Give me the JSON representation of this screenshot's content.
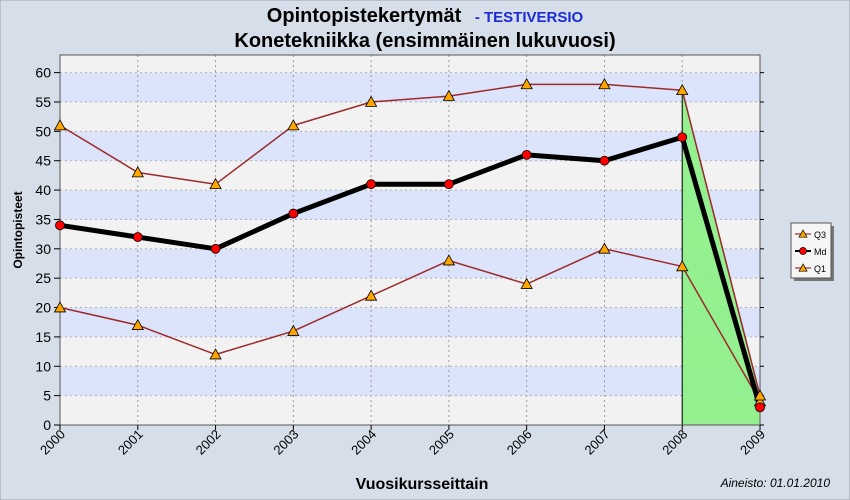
{
  "chart_data": {
    "type": "line",
    "title": "Opintopistekertymät",
    "title_suffix": "- TESTIVERSIO",
    "subtitle": "Konetekniikka (ensimmäinen lukuvuosi)",
    "xlabel": "Vuosikursseittain",
    "ylabel": "Opintopisteet",
    "footnote": "Aineisto: 01.01.2010",
    "x": [
      "2000",
      "2001",
      "2002",
      "2003",
      "2004",
      "2005",
      "2006",
      "2007",
      "2008",
      "2009"
    ],
    "ylim": [
      0,
      63
    ],
    "yticks": [
      0,
      5,
      10,
      15,
      20,
      25,
      30,
      35,
      40,
      45,
      50,
      55,
      60
    ],
    "grid": true,
    "legend_position": "right",
    "highlight_range": [
      "2008",
      "2009"
    ],
    "series": [
      {
        "name": "Q3",
        "values": [
          51,
          43,
          41,
          51,
          55,
          56,
          58,
          58,
          57,
          5
        ],
        "marker": "triangle"
      },
      {
        "name": "Md",
        "values": [
          34,
          32,
          30,
          36,
          41,
          41,
          46,
          45,
          49,
          3
        ],
        "marker": "circle"
      },
      {
        "name": "Q1",
        "values": [
          20,
          17,
          12,
          16,
          22,
          28,
          24,
          30,
          27,
          4
        ],
        "marker": "triangle"
      }
    ],
    "colors": {
      "background": "#d6dee9",
      "band_light": "#f2f2f2",
      "band_blue": "#dbe4fb",
      "quartile_line": "#9c2a2a",
      "median_line": "#000000",
      "triangle_fill": "#ffa500",
      "circle_fill": "#ff0000",
      "highlight_fill": "#8ff08a",
      "title_suffix": "#1a2bd8"
    }
  }
}
